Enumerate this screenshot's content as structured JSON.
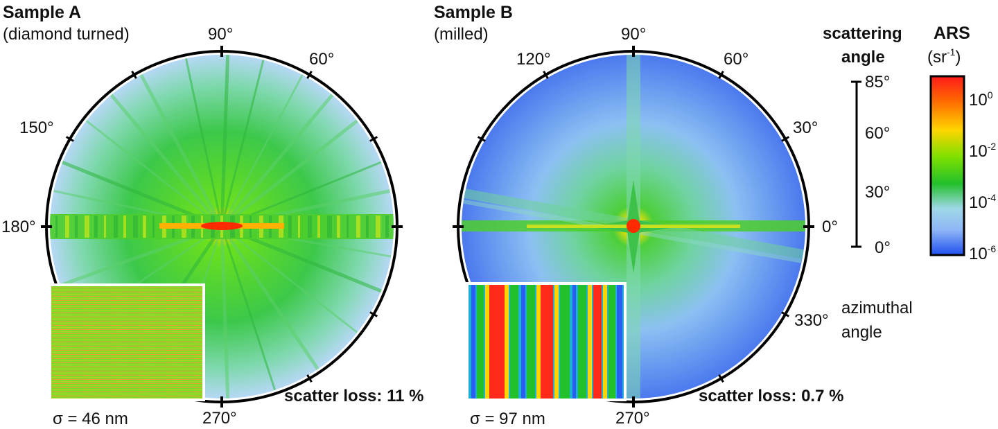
{
  "sample_a": {
    "title": "Sample A",
    "subtitle": "(diamond turned)",
    "angles": {
      "a90": "90°",
      "a60": "60°",
      "a150": "150°",
      "a180": "180°",
      "a270": "270°"
    },
    "scatter_loss": "scatter loss: 11 %",
    "sigma": "σ = 46 nm"
  },
  "sample_b": {
    "title": "Sample B",
    "subtitle": "(milled)",
    "angles": {
      "a90": "90°",
      "a120": "120°",
      "a60": "60°",
      "a30": "30°",
      "a0": "0°",
      "a330": "330°",
      "a270": "270°"
    },
    "scatter_loss": "scatter loss: 0.7 %",
    "sigma": "σ = 97 nm"
  },
  "scattering_scale": {
    "title_line1": "scattering",
    "title_line2": "angle",
    "ticks": [
      "85°",
      "60°",
      "30°",
      "0°"
    ]
  },
  "azimuthal": {
    "line1": "azimuthal",
    "line2": "angle"
  },
  "colorbar": {
    "title": "ARS",
    "unit_base": "(sr",
    "unit_exp": "-1",
    "unit_close": ")",
    "ticks": [
      {
        "base": "10",
        "exp": "0"
      },
      {
        "base": "10",
        "exp": "-2"
      },
      {
        "base": "10",
        "exp": "-4"
      },
      {
        "base": "10",
        "exp": "-6"
      }
    ],
    "colors": [
      "#ff1a1a",
      "#ff7a00",
      "#ffd400",
      "#7fe000",
      "#22c02a",
      "#8fd9c8",
      "#9fc8f5",
      "#1f4ff0"
    ]
  }
}
